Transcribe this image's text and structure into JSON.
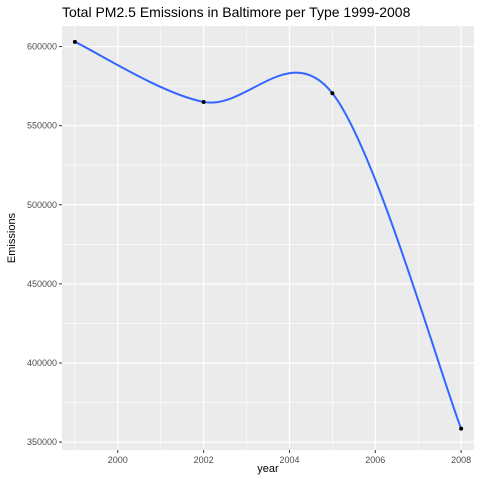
{
  "chart_data": {
    "type": "line",
    "title": "Total PM2.5 Emissions in Baltimore per Type 1999-2008",
    "xlabel": "year",
    "ylabel": "Emissions",
    "x": [
      1999,
      2002,
      2005,
      2008
    ],
    "series": [
      {
        "values": [
          603000,
          565000,
          570500,
          358500
        ]
      }
    ],
    "xticks": [
      "2000",
      "2002",
      "2004",
      "2006",
      "2008"
    ],
    "yticks": [
      "350000",
      "400000",
      "450000",
      "500000",
      "550000",
      "600000"
    ],
    "xlim": [
      1998.7,
      2008.3
    ],
    "ylim": [
      345000,
      613000
    ],
    "grid": true,
    "smooth": true,
    "colors": {
      "panel": "#ebebeb",
      "grid": "#ffffff",
      "line": "#3366ff",
      "point": "#000000"
    }
  }
}
